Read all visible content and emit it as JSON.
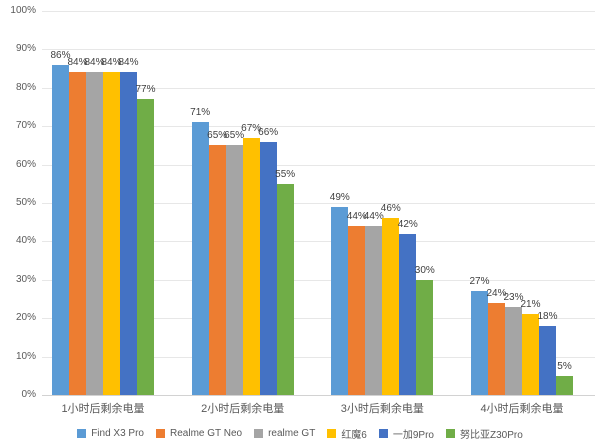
{
  "chart_data": {
    "type": "bar",
    "title": "",
    "categories": [
      "1小时后剩余电量",
      "2小时后剩余电量",
      "3小时后剩余电量",
      "4小时后剩余电量"
    ],
    "series": [
      {
        "name": "Find X3 Pro",
        "color": "#5B9BD5",
        "values": [
          86,
          71,
          49,
          27
        ]
      },
      {
        "name": "Realme GT Neo",
        "color": "#ED7D31",
        "values": [
          84,
          65,
          44,
          24
        ]
      },
      {
        "name": "realme GT",
        "color": "#A5A5A5",
        "values": [
          84,
          65,
          44,
          23
        ]
      },
      {
        "name": "红魔6",
        "color": "#FFC000",
        "values": [
          84,
          67,
          46,
          21
        ]
      },
      {
        "name": "一加9Pro",
        "color": "#4472C4",
        "values": [
          84,
          66,
          42,
          18
        ]
      },
      {
        "name": "努比亚Z30Pro",
        "color": "#70AD47",
        "values": [
          77,
          55,
          30,
          5
        ]
      }
    ],
    "ylim": [
      0,
      100
    ],
    "ytick_step": 10,
    "ytick_labels": [
      "0%",
      "10%",
      "20%",
      "30%",
      "40%",
      "50%",
      "60%",
      "70%",
      "80%",
      "90%",
      "100%"
    ],
    "data_label_suffix": "%",
    "grid": "horizontal",
    "legend_position": "bottom",
    "colors": {
      "gridline": "#e7e7e7",
      "axis_line": "#d2d2d2",
      "tick_text": "#595959",
      "data_label_text": "#404040",
      "background": "#ffffff"
    }
  }
}
